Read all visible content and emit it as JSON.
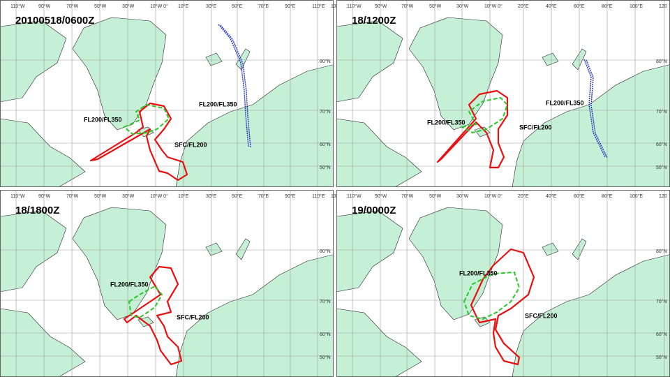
{
  "panels": [
    {
      "title": "20100518/0600Z",
      "lon_labels": [
        "110°W",
        "90°W",
        "70°W",
        "50°W",
        "30°W",
        "10°W 0°",
        "10°E",
        "30°E",
        "50°E",
        "70°E",
        "90°E",
        "110°E",
        "130°E"
      ],
      "lat_labels": [
        "80°N",
        "70°N",
        "60°N",
        "50°N"
      ],
      "labels": [
        "FL200/FL350",
        "FL200/FL350",
        "SFC/FL200"
      ]
    },
    {
      "title": "18/1200Z",
      "lon_labels": [
        "110°W",
        "90°W",
        "70°W",
        "50°W",
        "30°W",
        "10°W 0°",
        "20°E",
        "40°E",
        "60°E",
        "80°E",
        "100°E",
        "120"
      ],
      "lat_labels": [
        "80°N",
        "70°N",
        "60°N",
        "50°N"
      ],
      "labels": [
        "FL200/FL350",
        "FL200/FL350",
        "SFC/FL200"
      ]
    },
    {
      "title": "18/1800Z",
      "lon_labels": [
        "110°W",
        "90°W",
        "70°W",
        "50°W",
        "30°W",
        "10°W 0°",
        "10°E",
        "30°E",
        "50°E",
        "70°E",
        "90°E",
        "110°E",
        "130°E"
      ],
      "lat_labels": [
        "80°N",
        "70°N",
        "60°N",
        "50°N"
      ],
      "labels": [
        "FL200/FL350",
        "SFC/FL200"
      ]
    },
    {
      "title": "19/0000Z",
      "lon_labels": [
        "110°W",
        "90°W",
        "70°W",
        "50°W",
        "30°W",
        "10°W 0°",
        "20°E",
        "40°E",
        "60°E",
        "80°E",
        "100°E",
        "120"
      ],
      "lat_labels": [
        "80°N",
        "70°N",
        "60°N",
        "50°N"
      ],
      "labels": [
        "FL200/FL350",
        "SFC/FL200"
      ]
    }
  ]
}
